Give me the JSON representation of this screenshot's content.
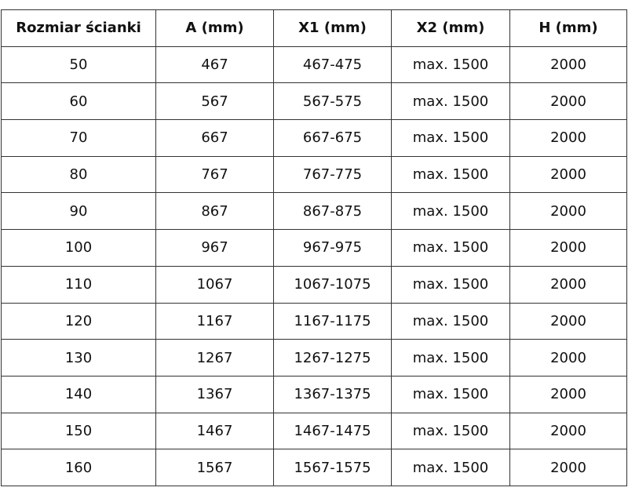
{
  "table": {
    "headers": [
      "Rozmiar ścianki",
      "A (mm)",
      "X1 (mm)",
      "X2 (mm)",
      "H (mm)"
    ],
    "rows": [
      [
        "50",
        "467",
        "467-475",
        "max. 1500",
        "2000"
      ],
      [
        "60",
        "567",
        "567-575",
        "max. 1500",
        "2000"
      ],
      [
        "70",
        "667",
        "667-675",
        "max. 1500",
        "2000"
      ],
      [
        "80",
        "767",
        "767-775",
        "max. 1500",
        "2000"
      ],
      [
        "90",
        "867",
        "867-875",
        "max. 1500",
        "2000"
      ],
      [
        "100",
        "967",
        "967-975",
        "max. 1500",
        "2000"
      ],
      [
        "110",
        "1067",
        "1067-1075",
        "max. 1500",
        "2000"
      ],
      [
        "120",
        "1167",
        "1167-1175",
        "max. 1500",
        "2000"
      ],
      [
        "130",
        "1267",
        "1267-1275",
        "max. 1500",
        "2000"
      ],
      [
        "140",
        "1367",
        "1367-1375",
        "max. 1500",
        "2000"
      ],
      [
        "150",
        "1467",
        "1467-1475",
        "max. 1500",
        "2000"
      ],
      [
        "160",
        "1567",
        "1567-1575",
        "max. 1500",
        "2000"
      ]
    ]
  }
}
